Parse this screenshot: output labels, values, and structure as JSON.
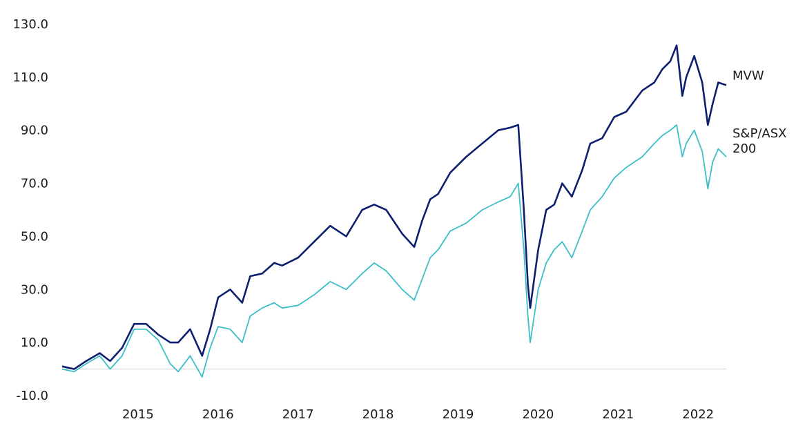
{
  "chart_data": {
    "type": "line",
    "title": "",
    "xlabel": "",
    "ylabel": "",
    "ylim": [
      -10,
      130
    ],
    "xlim": [
      2014.25,
      2022.55
    ],
    "y_ticks": [
      "130.0",
      "110.0",
      "90.0",
      "70.0",
      "50.0",
      "30.0",
      "10.0",
      "-10.0"
    ],
    "x_ticks": [
      "2015",
      "2016",
      "2017",
      "2018",
      "2019",
      "2020",
      "2021",
      "2022"
    ],
    "grid": false,
    "zero_line": true,
    "legend": "inline labels at line ends (right)",
    "colors": {
      "MVW": "#0d1f6e",
      "S&P/ASX 200": "#3cbec8"
    },
    "series": [
      {
        "name": "MVW",
        "label_lines": [
          "MVW"
        ],
        "x": [
          2014.25,
          2014.4,
          2014.55,
          2014.72,
          2014.85,
          2015.0,
          2015.15,
          2015.3,
          2015.45,
          2015.6,
          2015.7,
          2015.85,
          2016.0,
          2016.1,
          2016.2,
          2016.35,
          2016.5,
          2016.6,
          2016.75,
          2016.9,
          2017.0,
          2017.2,
          2017.4,
          2017.6,
          2017.8,
          2018.0,
          2018.15,
          2018.3,
          2018.5,
          2018.65,
          2018.75,
          2018.85,
          2018.95,
          2019.1,
          2019.3,
          2019.5,
          2019.7,
          2019.85,
          2019.95,
          2020.02,
          2020.07,
          2020.1,
          2020.2,
          2020.3,
          2020.4,
          2020.5,
          2020.62,
          2020.75,
          2020.85,
          2021.0,
          2021.15,
          2021.3,
          2021.5,
          2021.65,
          2021.75,
          2021.85,
          2021.93,
          2022.0,
          2022.05,
          2022.15,
          2022.25,
          2022.32,
          2022.38,
          2022.45,
          2022.55
        ],
        "y": [
          1,
          0,
          3,
          6,
          3,
          8,
          17,
          17,
          13,
          10,
          10,
          15,
          5,
          15,
          27,
          30,
          25,
          35,
          36,
          40,
          39,
          42,
          48,
          54,
          50,
          60,
          62,
          60,
          51,
          46,
          56,
          64,
          66,
          74,
          80,
          85,
          90,
          91,
          92,
          60,
          32,
          23,
          45,
          60,
          62,
          70,
          65,
          75,
          85,
          87,
          95,
          97,
          105,
          108,
          113,
          116,
          122,
          103,
          110,
          118,
          108,
          92,
          100,
          108,
          107
        ]
      },
      {
        "name": "S&P/ASX 200",
        "label_lines": [
          "S&P/ASX",
          "200"
        ],
        "x": [
          2014.25,
          2014.4,
          2014.55,
          2014.72,
          2014.85,
          2015.0,
          2015.15,
          2015.3,
          2015.45,
          2015.6,
          2015.7,
          2015.85,
          2016.0,
          2016.1,
          2016.2,
          2016.35,
          2016.5,
          2016.6,
          2016.75,
          2016.9,
          2017.0,
          2017.2,
          2017.4,
          2017.6,
          2017.8,
          2018.0,
          2018.15,
          2018.3,
          2018.5,
          2018.65,
          2018.75,
          2018.85,
          2018.95,
          2019.1,
          2019.3,
          2019.5,
          2019.7,
          2019.85,
          2019.95,
          2020.02,
          2020.07,
          2020.1,
          2020.2,
          2020.3,
          2020.4,
          2020.5,
          2020.62,
          2020.75,
          2020.85,
          2021.0,
          2021.15,
          2021.3,
          2021.5,
          2021.65,
          2021.75,
          2021.85,
          2021.93,
          2022.0,
          2022.05,
          2022.15,
          2022.25,
          2022.32,
          2022.38,
          2022.45,
          2022.55
        ],
        "y": [
          0,
          -1,
          2,
          5,
          0,
          5,
          15,
          15,
          11,
          2,
          -1,
          5,
          -3,
          8,
          16,
          15,
          10,
          20,
          23,
          25,
          23,
          24,
          28,
          33,
          30,
          36,
          40,
          37,
          30,
          26,
          34,
          42,
          45,
          52,
          55,
          60,
          63,
          65,
          70,
          45,
          20,
          10,
          30,
          40,
          45,
          48,
          42,
          52,
          60,
          65,
          72,
          76,
          80,
          85,
          88,
          90,
          92,
          80,
          85,
          90,
          82,
          68,
          78,
          83,
          80
        ]
      }
    ]
  }
}
